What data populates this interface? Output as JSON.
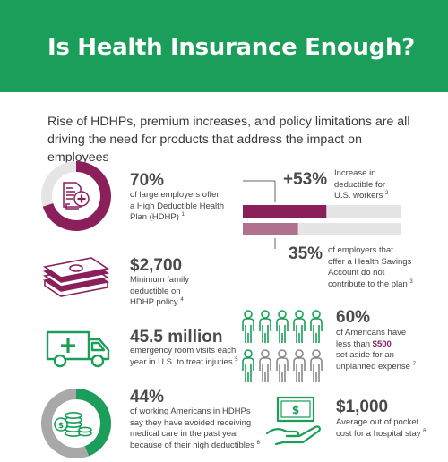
{
  "header": {
    "title": "Is Health Insurance Enough?"
  },
  "intro": "Rise of HDHPs, premium increases, and policy limitations are all driving the need for products that address the impact on employees",
  "colors": {
    "green": "#1a9e5a",
    "purple": "#8a1f5c",
    "mauve": "#b07090",
    "light_gray": "#e5e5e5",
    "dark_gray": "#666666"
  },
  "stats": {
    "hdhp": {
      "value": "70%",
      "fraction": 0.7,
      "line1": "of large employers offer",
      "line2": "a High Deductible Health",
      "line3": "Plan (HDHP)",
      "ref": "1",
      "icon": "document-health-icon"
    },
    "deductible_increase": {
      "value": "+53%",
      "fraction": 0.53,
      "line1": "Increase in",
      "line2": "deductible for",
      "line3": "U.S. workers",
      "ref": "2"
    },
    "hsa": {
      "value": "35%",
      "fraction": 0.35,
      "line1": "of employers that",
      "line2": "offer a Health Savings",
      "line3": "Account do not",
      "line4": "contribute to the plan",
      "ref": "3"
    },
    "family_deductible": {
      "value": "$2,700",
      "line1": "Minimum family",
      "line2": "deductible on",
      "line3": "HDHP policy",
      "ref": "4",
      "icon": "money-stack-icon"
    },
    "er_visits": {
      "value": "45.5 million",
      "line1": "emergency room visits each",
      "line2": "year in U.S. to treat injuries",
      "ref": "5",
      "icon": "ambulance-icon"
    },
    "savings": {
      "value": "60%",
      "count_highlighted": 6,
      "count_total": 10,
      "line1": "of Americans have",
      "line2_pre": "less than ",
      "line2_money": "$500",
      "line3": "set aside for an",
      "line4": "unplanned expense",
      "ref": "7",
      "icon": "people-icon"
    },
    "avoided_care": {
      "value": "44%",
      "fraction": 0.44,
      "line1": "of working Americans in HDHPs",
      "line2": "say they have avoided receiving",
      "line3": "medical care in the past year",
      "line4": "because of their high deductibles",
      "ref": "6",
      "icon": "coins-icon"
    },
    "hospital_stay": {
      "value": "$1,000",
      "line1": "Average out of pocket",
      "line2": "cost for a hospital stay",
      "ref": "8",
      "icon": "hand-money-icon"
    }
  }
}
